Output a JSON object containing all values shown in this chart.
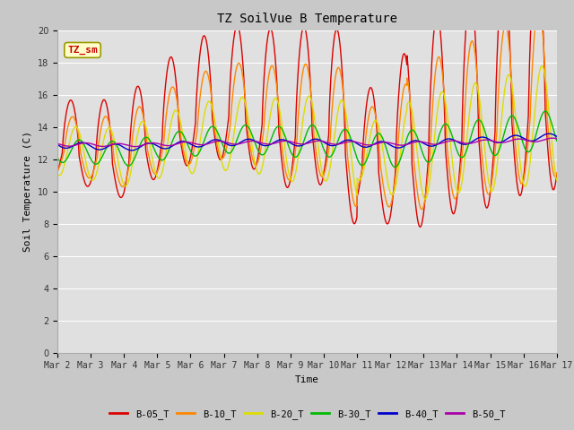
{
  "title": "TZ SoilVue B Temperature",
  "xlabel": "Time",
  "ylabel": "Soil Temperature (C)",
  "ylim": [
    0,
    20
  ],
  "yticks": [
    0,
    2,
    4,
    6,
    8,
    10,
    12,
    14,
    16,
    18,
    20
  ],
  "annotation": "TZ_sm",
  "annotation_color": "#cc0000",
  "annotation_bg": "#ffffcc",
  "fig_bg": "#c8c8c8",
  "plot_bg": "#e0e0e0",
  "grid_color": "#ffffff",
  "series_colors": {
    "B-05_T": "#dd0000",
    "B-10_T": "#ff8800",
    "B-20_T": "#dddd00",
    "B-30_T": "#00bb00",
    "B-40_T": "#0000cc",
    "B-50_T": "#aa00aa"
  },
  "series_lw": 1.0,
  "xtick_labels": [
    "Mar 2",
    "Mar 3",
    "Mar 4",
    "Mar 5",
    "Mar 6",
    "Mar 7",
    "Mar 8",
    "Mar 9",
    "Mar 10",
    "Mar 11",
    "Mar 12",
    "Mar 13",
    "Mar 14",
    "Mar 15",
    "Mar 16",
    "Mar 17"
  ],
  "num_days": 15,
  "pts_per_day": 144,
  "title_fontsize": 10,
  "axis_fontsize": 8,
  "tick_fontsize": 7
}
